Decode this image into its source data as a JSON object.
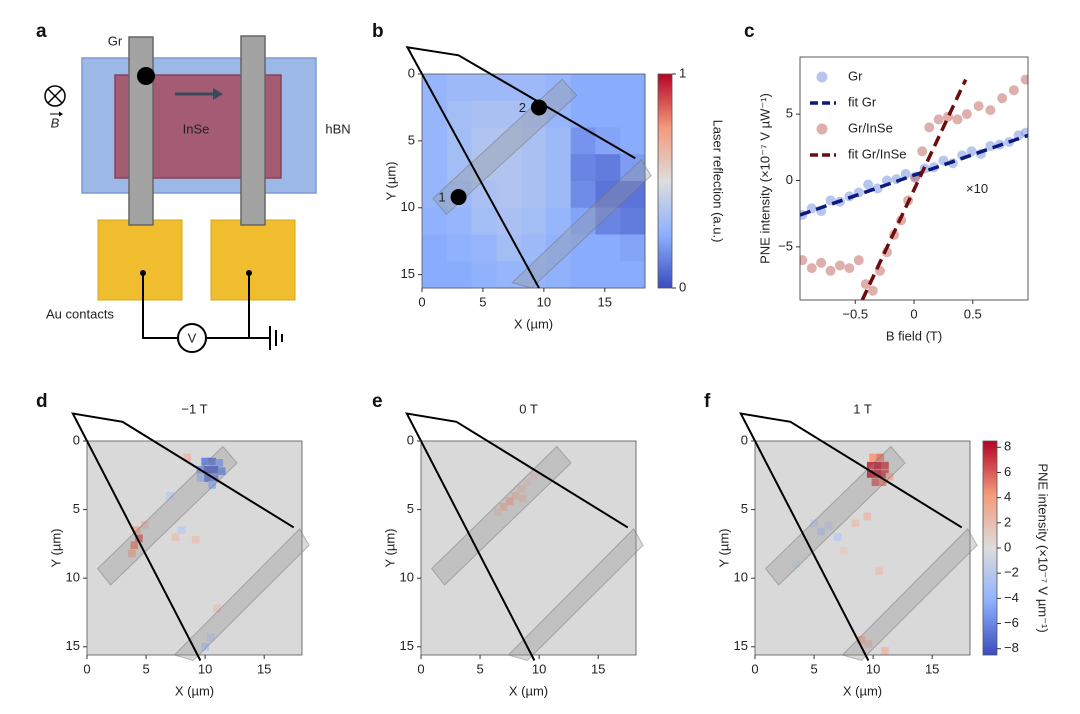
{
  "diagram": {
    "label": "a",
    "electrode_label": "Gr",
    "channel_label": "InSe",
    "substrate_label": "hBN",
    "contacts_label": "Au contacts",
    "meter_label": "V",
    "field_label": "B"
  },
  "sample": {
    "outline": {
      "x": [
        17.5,
        3,
        -1.2,
        9.6
      ],
      "y": [
        6.3,
        -1.4,
        -2.0,
        16
      ]
    },
    "electrodes": [
      {
        "x": [
          0.9,
          11.5,
          12.7,
          2
        ],
        "y": [
          9.3,
          0.4,
          1.6,
          10.5
        ]
      },
      {
        "x": [
          7.4,
          18,
          18.8,
          9
        ],
        "y": [
          15.6,
          6.4,
          7.6,
          16
        ]
      }
    ]
  },
  "chart_data": [
    {
      "type": "heatmap",
      "label": "b",
      "xlabel": "X (µm)",
      "ylabel": "Y (µm)",
      "xlim": [
        0,
        18.3
      ],
      "ylim": [
        16,
        0
      ],
      "xticks": [
        0,
        5,
        10,
        15
      ],
      "yticks": [
        0,
        5,
        10,
        15
      ],
      "zlim": [
        0,
        1
      ],
      "z": [
        [
          0.28,
          0.3,
          0.3,
          0.3,
          0.3,
          0.28,
          0.24,
          0.24,
          0.24
        ],
        [
          0.28,
          0.32,
          0.34,
          0.34,
          0.32,
          0.28,
          0.24,
          0.24,
          0.24
        ],
        [
          0.28,
          0.32,
          0.36,
          0.36,
          0.34,
          0.3,
          0.18,
          0.22,
          0.24
        ],
        [
          0.28,
          0.32,
          0.36,
          0.36,
          0.34,
          0.3,
          0.14,
          0.12,
          0.2
        ],
        [
          0.28,
          0.3,
          0.34,
          0.36,
          0.34,
          0.3,
          0.16,
          0.1,
          0.1
        ],
        [
          0.26,
          0.28,
          0.32,
          0.34,
          0.32,
          0.28,
          0.22,
          0.14,
          0.12
        ],
        [
          0.24,
          0.26,
          0.28,
          0.32,
          0.3,
          0.26,
          0.24,
          0.24,
          0.22
        ],
        [
          0.24,
          0.24,
          0.26,
          0.28,
          0.28,
          0.26,
          0.24,
          0.24,
          0.24
        ]
      ],
      "points": {
        "labels": [
          "1",
          "2"
        ],
        "x": [
          3,
          9.6
        ],
        "y": [
          9.2,
          2.5
        ]
      },
      "colorbar": {
        "label": "Laser reflection (a.u.)",
        "ticks": [
          0,
          1
        ]
      }
    },
    {
      "type": "scatter",
      "label": "c",
      "xlabel": "B field (T)",
      "ylabel": "PNE intensity (×10⁻⁷ V µW⁻¹)",
      "annotation": "×10",
      "xlim": [
        -0.97,
        0.97
      ],
      "ylim": [
        -9,
        9.3
      ],
      "xticks": [
        {
          "value": -0.5,
          "label": "−0.5"
        },
        0,
        0.5
      ],
      "yticks": [
        {
          "value": -5,
          "label": "−5"
        },
        0,
        5
      ],
      "legend": "upper left",
      "series": [
        {
          "name": "Gr",
          "style": "points",
          "color": "#6f8ee0",
          "x": [
            -0.95,
            -0.87,
            -0.79,
            -0.71,
            -0.63,
            -0.55,
            -0.47,
            -0.39,
            -0.31,
            -0.23,
            -0.15,
            -0.07,
            0.01,
            0.09,
            0.17,
            0.25,
            0.33,
            0.41,
            0.49,
            0.57,
            0.65,
            0.73,
            0.81,
            0.89,
            0.95
          ],
          "values": [
            -2.6,
            -2.1,
            -2.3,
            -1.5,
            -1.6,
            -1.2,
            -0.9,
            -0.3,
            -0.6,
            0.0,
            0.1,
            0.5,
            0.3,
            0.9,
            1.0,
            1.5,
            1.3,
            1.9,
            2.2,
            2.0,
            2.6,
            2.7,
            2.9,
            3.4,
            3.6
          ]
        },
        {
          "name": "fit Gr",
          "style": "dashed",
          "color": "#0b1a7e",
          "x": [
            -0.97,
            0.97
          ],
          "values": [
            -2.6,
            3.4
          ]
        },
        {
          "name": "Gr/InSe",
          "style": "points",
          "color": "#c0605a",
          "x": [
            -0.95,
            -0.87,
            -0.79,
            -0.71,
            -0.63,
            -0.55,
            -0.47,
            -0.41,
            -0.35,
            -0.29,
            -0.23,
            -0.17,
            -0.11,
            -0.05,
            0.01,
            0.07,
            0.13,
            0.21,
            0.29,
            0.37,
            0.45,
            0.55,
            0.65,
            0.75,
            0.85,
            0.95
          ],
          "values": [
            -6.0,
            -6.6,
            -6.2,
            -6.8,
            -6.4,
            -6.6,
            -6.0,
            -7.8,
            -8.3,
            -6.8,
            -5.4,
            -4.1,
            -3.0,
            -1.5,
            0.2,
            2.2,
            4.0,
            4.6,
            4.8,
            4.6,
            5.0,
            5.6,
            5.3,
            6.2,
            6.8,
            7.6
          ]
        },
        {
          "name": "fit Gr/InSe",
          "style": "dashed",
          "color": "#6b0d0d",
          "x": [
            -0.44,
            0.44
          ],
          "values": [
            -9,
            7.6
          ]
        }
      ]
    },
    {
      "type": "heatmap",
      "label": "d",
      "title": "−1 T",
      "xlabel": "X (µm)",
      "ylabel": "Y (µm)",
      "xlim": [
        0,
        18.2
      ],
      "ylim": [
        15.6,
        0
      ],
      "xticks": [
        0,
        5,
        10,
        15
      ],
      "yticks": [
        0,
        5,
        10,
        15
      ],
      "zlim": [
        -8.5,
        8.5
      ],
      "pixels": {
        "x": [
          10,
          10.6,
          11.2,
          9.6,
          10.2,
          10.8,
          11.4,
          10.2,
          10.8,
          9.6,
          10.6,
          4.2,
          4.4,
          4.0,
          3.8,
          4.9,
          8.5,
          7.0,
          8.0,
          7.5,
          9.2,
          10.5,
          10.0,
          11.0
        ],
        "y": [
          1.5,
          1.5,
          1.6,
          2.1,
          2.1,
          2.1,
          2.2,
          2.7,
          2.7,
          2.7,
          3.2,
          6.5,
          7.1,
          7.6,
          8.2,
          6.1,
          1.2,
          4.0,
          6.5,
          7.0,
          7.2,
          14.3,
          15.0,
          12.2
        ],
        "values": [
          -6,
          -7,
          -5,
          -5,
          -8,
          -8,
          -6,
          -7,
          -6,
          -3,
          -4,
          3,
          6,
          5,
          3,
          2,
          2,
          -1.5,
          -1.5,
          1.5,
          1.5,
          -1.5,
          -2,
          1.5
        ]
      }
    },
    {
      "type": "heatmap",
      "label": "e",
      "title": "0 T",
      "xlabel": "X (µm)",
      "ylabel": "Y (µm)",
      "xlim": [
        0,
        18.2
      ],
      "ylim": [
        15.6,
        0
      ],
      "xticks": [
        0,
        5,
        10,
        15
      ],
      "yticks": [
        0,
        5,
        10,
        15
      ],
      "zlim": [
        -8.5,
        8.5
      ],
      "pixels": {
        "x": [
          8.5,
          8.0,
          7.5,
          7.0,
          8.6,
          9.0,
          6.5,
          9.6
        ],
        "y": [
          3.5,
          4.0,
          4.4,
          4.8,
          4.2,
          3.0,
          5.2,
          2.5
        ],
        "values": [
          1.5,
          2,
          3,
          2.5,
          1.5,
          1,
          1.5,
          1
        ]
      }
    },
    {
      "type": "heatmap",
      "label": "f",
      "title": "1 T",
      "xlabel": "X (µm)",
      "ylabel": "Y (µm)",
      "xlim": [
        0,
        18.2
      ],
      "ylim": [
        15.6,
        0
      ],
      "xticks": [
        0,
        5,
        10,
        15
      ],
      "yticks": [
        0,
        5,
        10,
        15
      ],
      "zlim": [
        -8.5,
        8.5
      ],
      "pixels": {
        "x": [
          10,
          10.6,
          9.8,
          10.4,
          11.0,
          9.8,
          10.4,
          11.0,
          10.2,
          10.8,
          11.4,
          5.0,
          5.6,
          6.2,
          7.0,
          8.5,
          9.5,
          7.5,
          9.0,
          9.6,
          11.0,
          10.5,
          3.5
        ],
        "y": [
          1.2,
          1.2,
          1.8,
          1.8,
          1.8,
          2.4,
          2.4,
          2.4,
          3.0,
          3.0,
          2.6,
          6.0,
          6.6,
          6.2,
          7.0,
          6.0,
          5.5,
          8.0,
          14.5,
          14.8,
          15.3,
          9.5,
          9.0
        ],
        "values": [
          4,
          5,
          7,
          8,
          7,
          8,
          8,
          7,
          6,
          5,
          3,
          -1.5,
          -2,
          -1.5,
          -1.5,
          1.5,
          2,
          1,
          3,
          2,
          2,
          1.5,
          -1
        ]
      },
      "colorbar": {
        "label": "PNE intensity (×10⁻⁷ V µm⁻¹)",
        "ticks": [
          {
            "value": -8,
            "label": "−8"
          },
          {
            "value": -6,
            "label": "−6"
          },
          {
            "value": -4,
            "label": "−4"
          },
          {
            "value": -2,
            "label": "−2"
          },
          0,
          2,
          4,
          6,
          8
        ]
      }
    }
  ]
}
